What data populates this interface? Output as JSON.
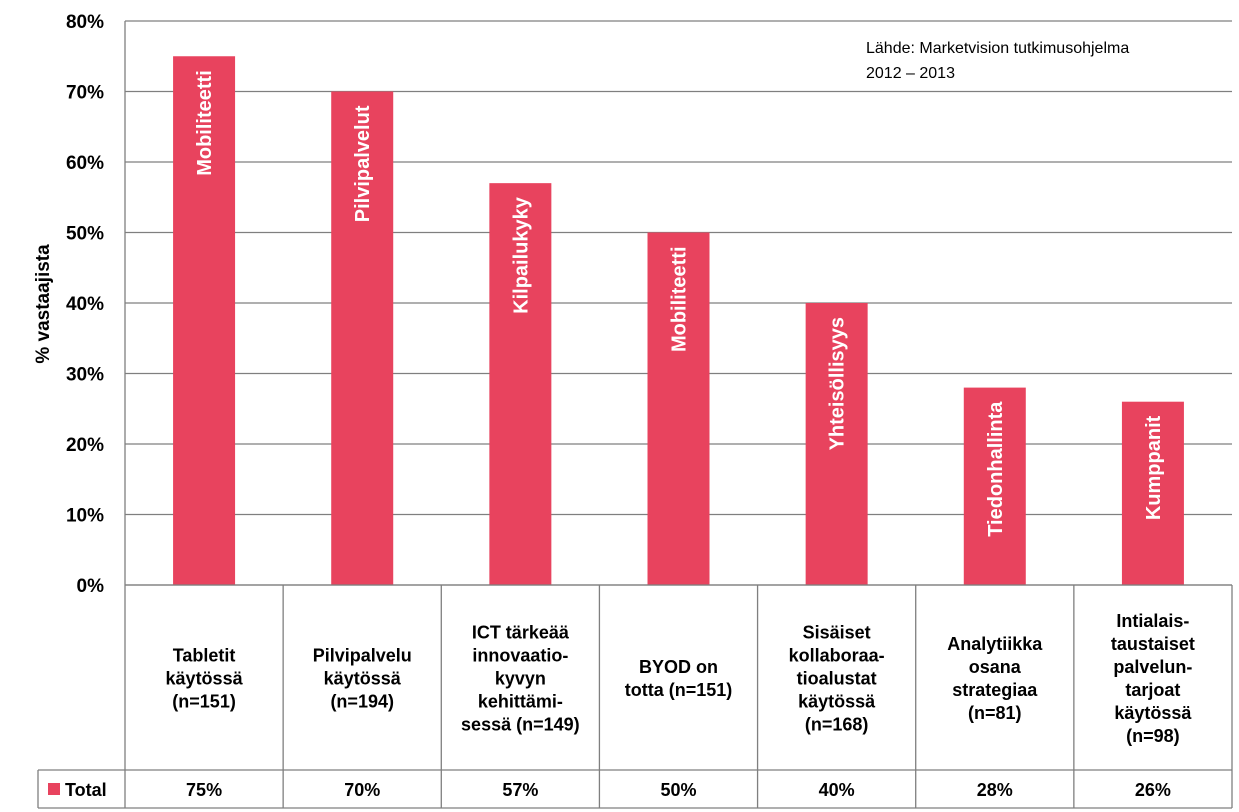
{
  "chart_data": {
    "type": "bar",
    "ylabel": "% vastaajista",
    "ylim": [
      0,
      80
    ],
    "yticks": [
      "0%",
      "10%",
      "20%",
      "30%",
      "40%",
      "50%",
      "60%",
      "70%",
      "80%"
    ],
    "grid": true,
    "source_note": [
      "Lähde: Marketvision tutkimusohjelma",
      "2012 – 2013"
    ],
    "series": [
      {
        "name": "Total",
        "color": "#e8435e",
        "values": [
          75,
          70,
          57,
          50,
          40,
          28,
          26
        ],
        "value_labels": [
          "75%",
          "70%",
          "57%",
          "50%",
          "40%",
          "28%",
          "26%"
        ]
      }
    ],
    "bar_labels": [
      "Mobiliteetti",
      "Pilvipalvelut",
      "Kilpailukyky",
      "Mobiliteetti",
      "Yhteisöllisyys",
      "Tiedonhallinta",
      "Kumppanit"
    ],
    "categories": [
      [
        "Tabletit",
        "käytössä",
        "(n=151)"
      ],
      [
        "Pilvipalvelu",
        "käytössä",
        "(n=194)"
      ],
      [
        "ICT tärkeää",
        "innovaatio-",
        "kyvyn",
        "kehittämi-",
        "sessä (n=149)"
      ],
      [
        "BYOD on",
        "totta (n=151)"
      ],
      [
        "Sisäiset",
        "kollaboraa-",
        "tioalustat",
        "käytössä",
        "(n=168)"
      ],
      [
        "Analytiikka",
        "osana",
        "strategiaa",
        "(n=81)"
      ],
      [
        "Intialais-",
        "taustaiset",
        "palvelun-",
        "tarjoat",
        "käytössä",
        "(n=98)"
      ]
    ]
  }
}
